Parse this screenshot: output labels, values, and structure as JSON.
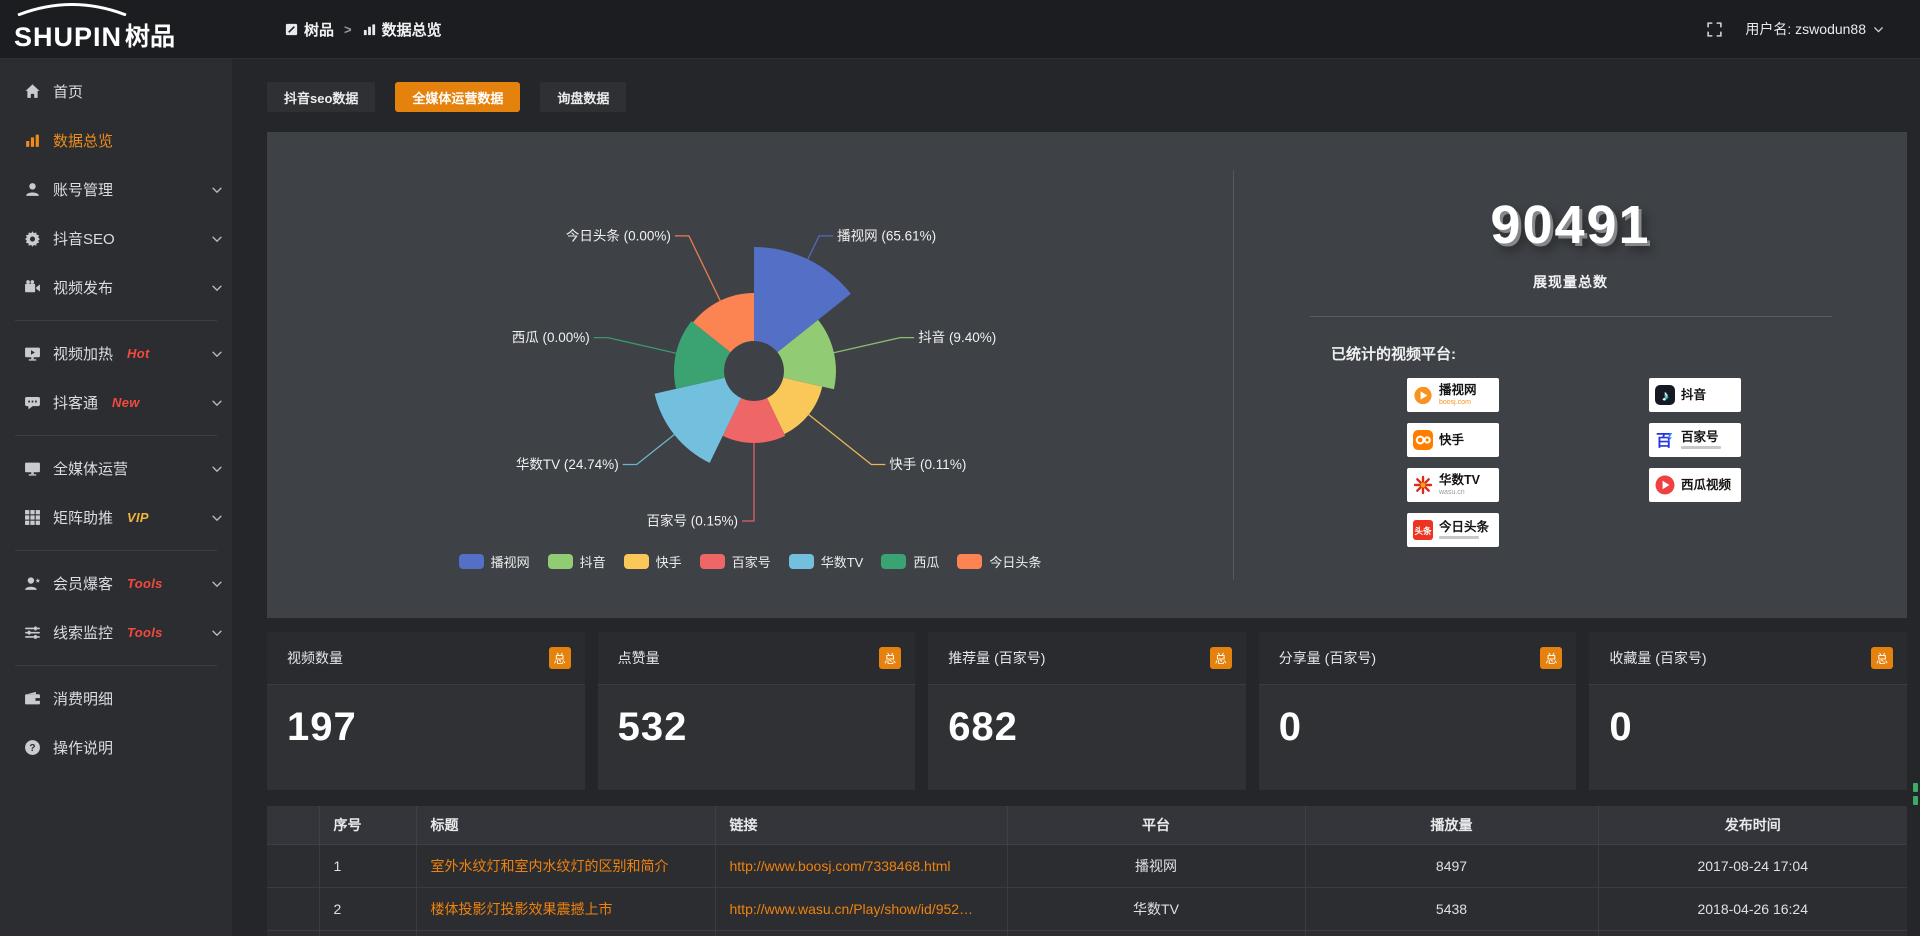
{
  "topbar": {
    "logo_main": "SHUPIN",
    "logo_cn": "树品",
    "breadcrumbs": [
      "树品",
      "数据总览"
    ],
    "breadcrumb_sep": ">",
    "user_label": "用户名: zswodun88"
  },
  "sidebar": {
    "items": [
      {
        "label": "首页",
        "icon": "home-icon"
      },
      {
        "label": "数据总览",
        "icon": "bar-chart-icon",
        "active": true
      },
      {
        "label": "账号管理",
        "icon": "user-icon",
        "chevron": true
      },
      {
        "label": "抖音SEO",
        "icon": "gear-icon",
        "chevron": true
      },
      {
        "label": "视频发布",
        "icon": "video-publish-icon",
        "chevron": true
      },
      {
        "divider": true
      },
      {
        "label": "视频加热",
        "icon": "screen-play-icon",
        "badge": "Hot",
        "badge_color": "#f4493f",
        "chevron": true
      },
      {
        "label": "抖客通",
        "icon": "chat-icon",
        "badge": "New",
        "badge_color": "#f4493f",
        "chevron": true
      },
      {
        "divider": true
      },
      {
        "label": "全媒体运营",
        "icon": "monitor-icon",
        "chevron": true
      },
      {
        "label": "矩阵助推",
        "icon": "grid-icon",
        "badge": "VIP",
        "badge_color": "#f0b63c",
        "chevron": true
      },
      {
        "divider": true
      },
      {
        "label": "会员爆客",
        "icon": "member-icon",
        "badge": "Tools",
        "badge_color": "#f4493f",
        "chevron": true
      },
      {
        "label": "线索监控",
        "icon": "sliders-icon",
        "badge": "Tools",
        "badge_color": "#f4493f",
        "chevron": true
      },
      {
        "divider": true
      },
      {
        "label": "消费明细",
        "icon": "wallet-icon"
      },
      {
        "label": "操作说明",
        "icon": "help-icon"
      }
    ]
  },
  "tabs": [
    {
      "label": "抖音seo数据"
    },
    {
      "label": "全媒体运营数据",
      "active": true
    },
    {
      "label": "询盘数据"
    }
  ],
  "chart_data": {
    "type": "pie",
    "subtype": "nightingale-rose",
    "unit": "percent-of-total-impressions",
    "inner_radius": 30,
    "legend_position": "bottom",
    "series": [
      {
        "name": "播视网",
        "percent": 65.61,
        "label": "播视网 (65.61%)",
        "color": "#5470c6",
        "radius": 124
      },
      {
        "name": "抖音",
        "percent": 9.4,
        "label": "抖音 (9.40%)",
        "color": "#91cc75",
        "radius": 82
      },
      {
        "name": "快手",
        "percent": 0.11,
        "label": "快手 (0.11%)",
        "color": "#fac858",
        "radius": 70
      },
      {
        "name": "百家号",
        "percent": 0.15,
        "label": "百家号 (0.15%)",
        "color": "#ee6666",
        "radius": 72
      },
      {
        "name": "华数TV",
        "percent": 24.74,
        "label": "华数TV (24.74%)",
        "color": "#73c0de",
        "radius": 102
      },
      {
        "name": "西瓜",
        "percent": 0.0,
        "label": "西瓜 (0.00%)",
        "color": "#3ba272",
        "radius": 80
      },
      {
        "name": "今日头条",
        "percent": 0.0,
        "label": "今日头条 (0.00%)",
        "color": "#fc8452",
        "radius": 78
      }
    ]
  },
  "summary": {
    "total": "90491",
    "total_label": "展现量总数",
    "platforms_title": "已统计的视频平台:",
    "platform_cols": [
      [
        {
          "name": "播视网",
          "sub": "boosj.com",
          "sub_color": "#f7931e",
          "logo": "boosj-logo"
        },
        {
          "name": "快手",
          "logo": "kuaishou-logo"
        },
        {
          "name": "华数TV",
          "sub": "wasu.cn",
          "sub_color": "#9a9a9a",
          "logo": "wasu-logo"
        },
        {
          "name": "今日头条",
          "slogan": true,
          "logo": "toutiao-logo"
        }
      ],
      [
        {
          "name": "抖音",
          "logo": "douyin-logo"
        },
        {
          "name": "百家号",
          "slogan": true,
          "logo": "baijia-logo"
        },
        {
          "name": "西瓜视频",
          "logo": "xigua-logo"
        }
      ]
    ]
  },
  "stat_cards": [
    {
      "label": "视频数量",
      "badge": "总",
      "value": "197"
    },
    {
      "label": "点赞量",
      "badge": "总",
      "value": "532"
    },
    {
      "label": "推荐量 (百家号)",
      "badge": "总",
      "value": "682"
    },
    {
      "label": "分享量 (百家号)",
      "badge": "总",
      "value": "0"
    },
    {
      "label": "收藏量 (百家号)",
      "badge": "总",
      "value": "0"
    }
  ],
  "table": {
    "headers": [
      "序号",
      "标题",
      "链接",
      "平台",
      "播放量",
      "发布时间"
    ],
    "rows": [
      {
        "no": "1",
        "title": "室外水纹灯和室内水纹灯的区别和简介",
        "link": "http://www.boosj.com/7338468.html",
        "platform": "播视网",
        "views": "8497",
        "time": "2017-08-24 17:04"
      },
      {
        "no": "2",
        "title": "楼体投影灯投影效果震撼上市",
        "link": "http://www.wasu.cn/Play/show/id/952…",
        "platform": "华数TV",
        "views": "5438",
        "time": "2018-04-26 16:24"
      }
    ]
  }
}
